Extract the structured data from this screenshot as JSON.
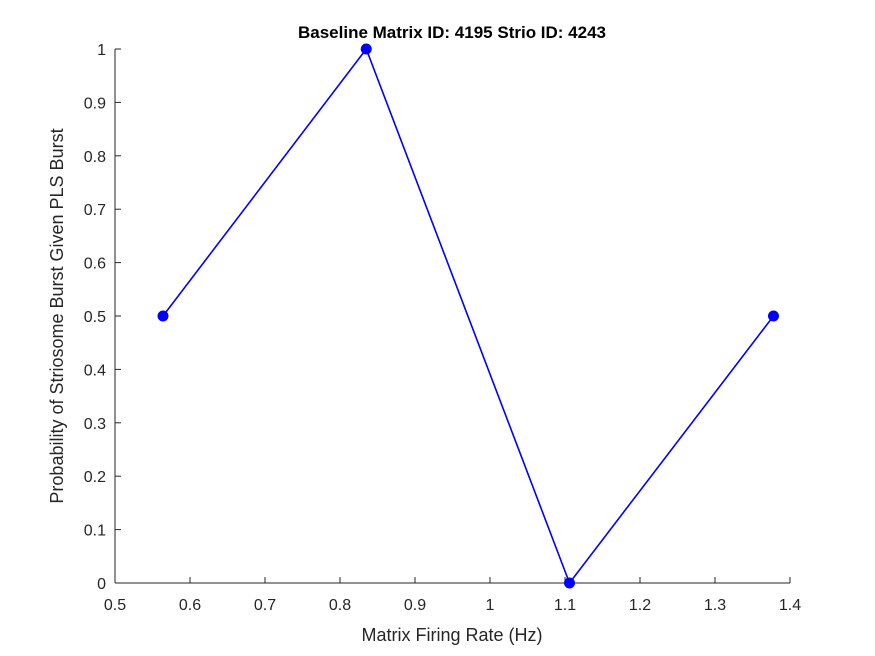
{
  "chart_data": {
    "type": "line",
    "title": "Baseline Matrix ID: 4195 Strio ID: 4243",
    "xlabel": "Matrix Firing Rate (Hz)",
    "ylabel": "Probability of Striosome Burst Given PLS Burst",
    "xlim": [
      0.5,
      1.4
    ],
    "ylim": [
      0,
      1
    ],
    "x_ticks": [
      "0.5",
      "0.6",
      "0.7",
      "0.8",
      "0.9",
      "1",
      "1.1",
      "1.2",
      "1.3",
      "1.4"
    ],
    "y_ticks": [
      "0",
      "0.1",
      "0.2",
      "0.3",
      "0.4",
      "0.5",
      "0.6",
      "0.7",
      "0.8",
      "0.9",
      "1"
    ],
    "grid": false,
    "series": [
      {
        "x": [
          0.564,
          0.835,
          1.106,
          1.378
        ],
        "y": [
          0.5,
          1.0,
          0.0,
          0.5
        ],
        "color": "#0000ff",
        "marker": "circle"
      }
    ]
  }
}
